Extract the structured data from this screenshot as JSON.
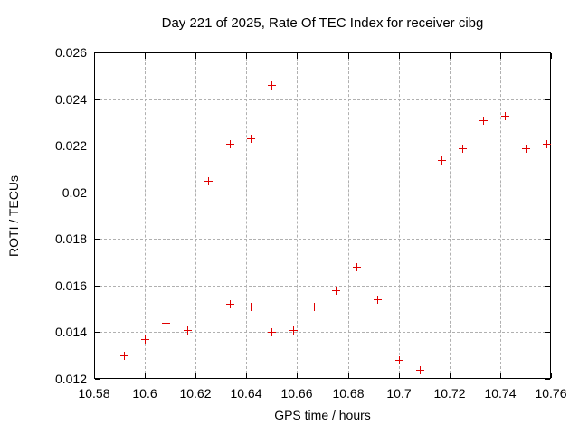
{
  "chart_data": {
    "type": "scatter",
    "title": "Day 221 of 2025, Rate Of TEC Index for receiver cibg",
    "xlabel": "GPS time / hours",
    "ylabel": "ROTI / TECUs",
    "xlim": [
      10.58,
      10.76
    ],
    "ylim": [
      0.012,
      0.026
    ],
    "x_ticks": [
      10.58,
      10.6,
      10.62,
      10.64,
      10.66,
      10.68,
      10.7,
      10.72,
      10.74,
      10.76
    ],
    "x_tick_labels": [
      "10.58",
      "10.6",
      "10.62",
      "10.64",
      "10.66",
      "10.68",
      "10.7",
      "10.72",
      "10.74",
      "10.76"
    ],
    "y_ticks": [
      0.012,
      0.014,
      0.016,
      0.018,
      0.02,
      0.022,
      0.024,
      0.026
    ],
    "y_tick_labels": [
      "0.012",
      "0.014",
      "0.016",
      "0.018",
      "0.02",
      "0.022",
      "0.024",
      "0.026"
    ],
    "grid": true,
    "legend": "none",
    "marker": "plus",
    "series": [
      {
        "name": "ROTI",
        "points": [
          [
            10.5917,
            0.013
          ],
          [
            10.6,
            0.0137
          ],
          [
            10.6083,
            0.0144
          ],
          [
            10.6167,
            0.0141
          ],
          [
            10.625,
            0.0205
          ],
          [
            10.6333,
            0.0152
          ],
          [
            10.6333,
            0.0221
          ],
          [
            10.6417,
            0.0151
          ],
          [
            10.6417,
            0.0223
          ],
          [
            10.65,
            0.014
          ],
          [
            10.65,
            0.0246
          ],
          [
            10.6583,
            0.0141
          ],
          [
            10.6667,
            0.0151
          ],
          [
            10.675,
            0.0158
          ],
          [
            10.6833,
            0.0168
          ],
          [
            10.6917,
            0.0154
          ],
          [
            10.7,
            0.0128
          ],
          [
            10.7083,
            0.0124
          ],
          [
            10.7167,
            0.0214
          ],
          [
            10.725,
            0.0219
          ],
          [
            10.7333,
            0.0231
          ],
          [
            10.7417,
            0.0233
          ],
          [
            10.75,
            0.0219
          ],
          [
            10.7583,
            0.0221
          ]
        ]
      }
    ],
    "colors": {
      "marker": "#e00000",
      "axis": "#000000",
      "grid": "#b0b0b0",
      "background": "#ffffff",
      "text": "#000000"
    }
  }
}
